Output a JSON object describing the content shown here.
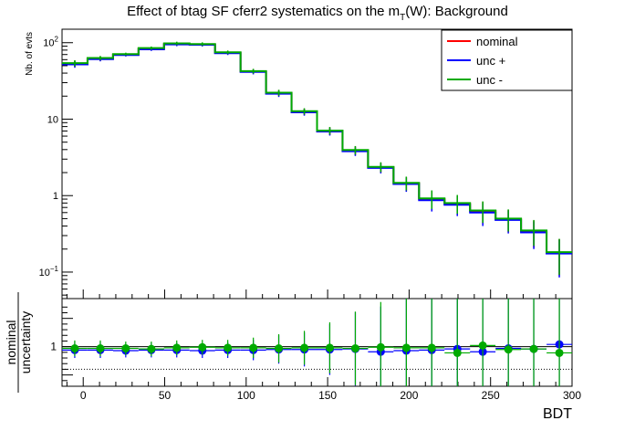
{
  "chart_data": [
    {
      "type": "line",
      "panel": "main",
      "title_pre": "Effect of btag SF cferr2 systematics on the m",
      "title_sub": "T",
      "title_post": "(W): Background",
      "ylabel": "Nb. of evts",
      "yscale": "log",
      "ylim": [
        0.045,
        150
      ],
      "xlim": [
        -13,
        300
      ],
      "ytick_labels": [
        {
          "value": 0.1,
          "mantissa": "10",
          "exp": "−1"
        },
        {
          "value": 1,
          "mantissa": "1",
          "exp": ""
        },
        {
          "value": 10,
          "mantissa": "10",
          "exp": ""
        },
        {
          "value": 100,
          "mantissa": "10",
          "exp": "2"
        }
      ],
      "legend_position": "top-right",
      "bin_edges": [
        -13,
        2.65,
        18.3,
        33.95,
        49.6,
        65.25,
        80.9,
        96.55,
        112.2,
        127.85,
        143.5,
        159.15,
        174.8,
        190.45,
        206.1,
        221.75,
        237.4,
        253.05,
        268.7,
        284.35,
        300
      ],
      "series": [
        {
          "name": "nominal",
          "color": "#ff0000",
          "values": [
            53,
            62,
            70,
            84,
            96,
            95,
            74,
            42,
            22,
            12.5,
            7.0,
            3.9,
            2.35,
            1.45,
            0.9,
            0.78,
            0.63,
            0.49,
            0.34,
            0.18
          ],
          "errors": [
            5,
            4,
            3,
            4,
            5,
            5,
            4,
            3,
            2,
            1.2,
            0.8,
            0.5,
            0.35,
            0.3,
            0.25,
            0.22,
            0.2,
            0.16,
            0.13,
            0.09
          ]
        },
        {
          "name": "unc +",
          "color": "#0000ff",
          "values": [
            52,
            61,
            69,
            82,
            95,
            94,
            73,
            41.5,
            21.5,
            12.3,
            6.9,
            3.8,
            2.3,
            1.42,
            0.87,
            0.76,
            0.6,
            0.48,
            0.33,
            0.175
          ],
          "errors": [
            5,
            4,
            3,
            4,
            5,
            5,
            4,
            3,
            2,
            1.2,
            0.8,
            0.5,
            0.35,
            0.3,
            0.25,
            0.22,
            0.2,
            0.16,
            0.13,
            0.09
          ]
        },
        {
          "name": "unc -",
          "color": "#00aa00",
          "values": [
            54,
            63,
            71,
            85,
            98,
            96,
            75,
            42.5,
            22.2,
            12.7,
            7.1,
            3.95,
            2.38,
            1.47,
            0.92,
            0.8,
            0.64,
            0.5,
            0.35,
            0.182
          ],
          "errors": [
            5,
            4,
            3,
            4,
            5,
            5,
            4,
            3,
            2,
            1.2,
            0.8,
            0.5,
            0.35,
            0.3,
            0.25,
            0.22,
            0.2,
            0.16,
            0.13,
            0.09
          ]
        }
      ]
    },
    {
      "type": "scatter",
      "panel": "ratio",
      "ylabel_top": "nominal",
      "ylabel_bottom": "uncertainty",
      "xlabel": "BDT",
      "xlim": [
        -13,
        300
      ],
      "ylim": [
        0.3,
        1.85
      ],
      "xtick_labels": [
        "0",
        "50",
        "100",
        "150",
        "200",
        "250",
        "300"
      ],
      "xtick_values": [
        0,
        50,
        100,
        150,
        200,
        250,
        300
      ],
      "ytick_labels": [
        "1"
      ],
      "ytick_values": [
        1
      ],
      "reference_line": 1,
      "dotted_line": 0.6,
      "x": [
        -5.2,
        10.5,
        26.1,
        41.8,
        57.4,
        73.1,
        88.7,
        104.4,
        120.0,
        135.7,
        151.3,
        167.0,
        182.6,
        198.3,
        213.9,
        229.6,
        245.2,
        260.9,
        276.5,
        292.2
      ],
      "series": [
        {
          "name": "unc +",
          "color": "#0000ff",
          "y": [
            0.94,
            0.94,
            0.93,
            0.94,
            0.94,
            0.93,
            0.94,
            0.94,
            0.95,
            0.95,
            0.95,
            0.96,
            0.91,
            0.93,
            0.94,
            0.96,
            0.91,
            0.97,
            0.96,
            1.04
          ],
          "err": [
            0.14,
            0.14,
            0.12,
            0.13,
            0.13,
            0.13,
            0.14,
            0.18,
            0.25,
            0.3,
            0.45,
            0.65,
            0.8,
            0.95,
            1.0,
            1.0,
            1.0,
            1.0,
            1.0,
            1.0
          ]
        },
        {
          "name": "unc -",
          "color": "#00aa00",
          "y": [
            0.97,
            0.97,
            0.97,
            0.96,
            0.98,
            0.99,
            0.98,
            0.98,
            0.97,
            0.98,
            0.98,
            0.97,
            0.99,
            0.98,
            0.98,
            0.89,
            1.02,
            0.95,
            0.96,
            0.89
          ],
          "err": [
            0.14,
            0.14,
            0.12,
            0.13,
            0.13,
            0.13,
            0.14,
            0.18,
            0.25,
            0.3,
            0.45,
            0.65,
            0.8,
            0.95,
            1.0,
            1.0,
            1.0,
            1.0,
            1.0,
            1.0
          ]
        }
      ]
    }
  ]
}
